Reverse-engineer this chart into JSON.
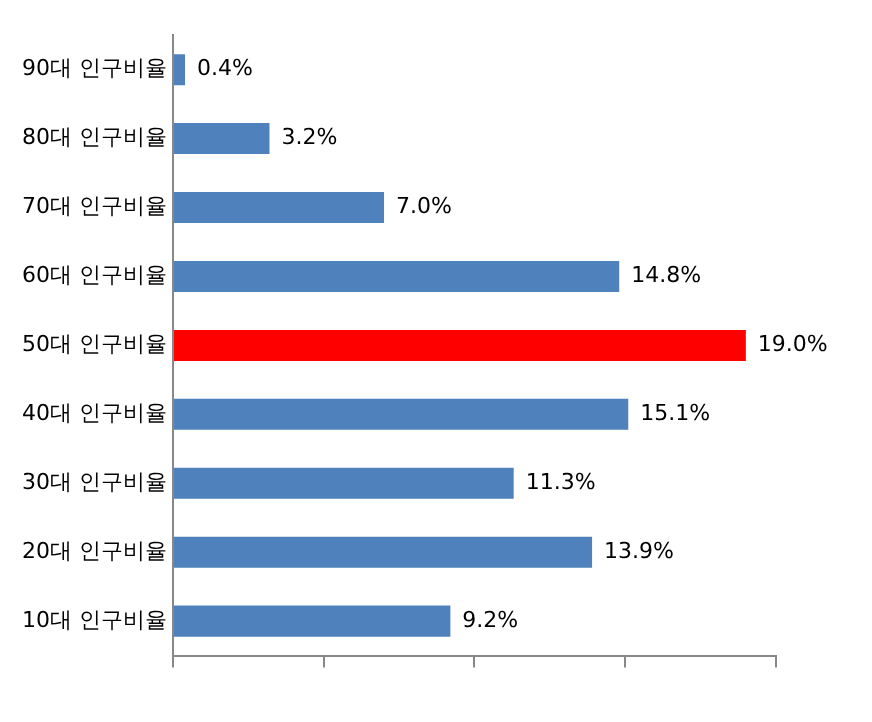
{
  "chart_data": {
    "type": "bar",
    "orientation": "horizontal",
    "categories": [
      "90대 인구비율",
      "80대 인구비율",
      "70대 인구비율",
      "60대 인구비율",
      "50대 인구비율",
      "40대 인구비율",
      "30대 인구비율",
      "20대 인구비율",
      "10대 인구비율"
    ],
    "values": [
      0.4,
      3.2,
      7.0,
      14.8,
      19.0,
      15.1,
      11.3,
      13.9,
      9.2
    ],
    "value_labels": [
      "0.4%",
      "3.2%",
      "7.0%",
      "14.8%",
      "19.0%",
      "15.1%",
      "11.3%",
      "13.9%",
      "9.2%"
    ],
    "colors": [
      "#4f81bd",
      "#4f81bd",
      "#4f81bd",
      "#4f81bd",
      "#ff0000",
      "#4f81bd",
      "#4f81bd",
      "#4f81bd",
      "#4f81bd"
    ],
    "xlim": [
      0,
      20
    ],
    "xticks": [
      {
        "value": 0,
        "label": null
      },
      {
        "value": 5,
        "label": null
      },
      {
        "value": 10,
        "label": null
      },
      {
        "value": 15,
        "label": null
      },
      {
        "value": 20,
        "label": null
      }
    ],
    "tick_labels": "y",
    "grid": false,
    "legend": false
  }
}
